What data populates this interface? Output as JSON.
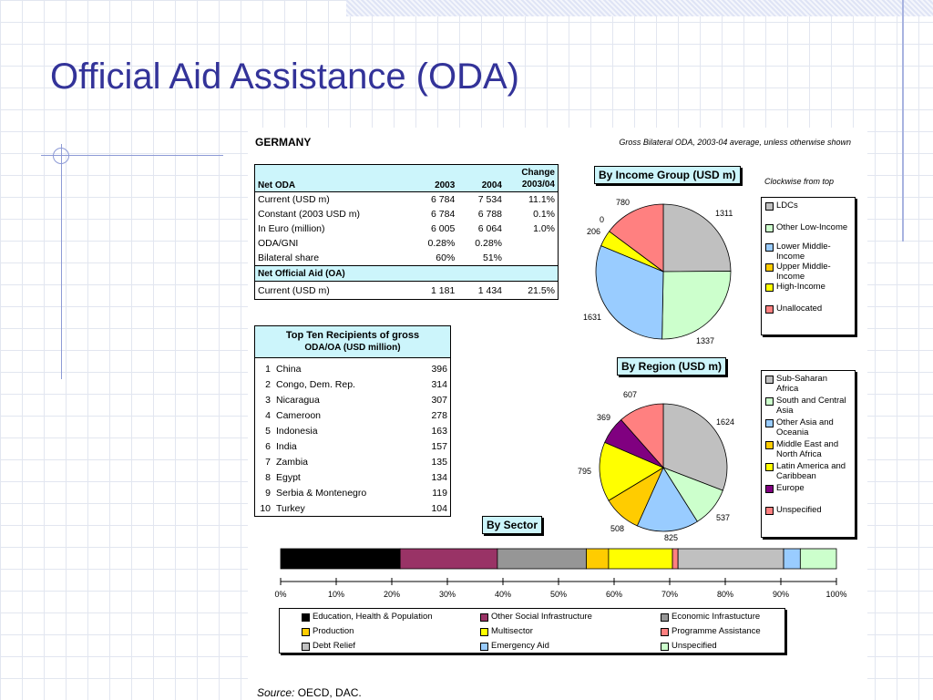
{
  "slide": {
    "title": "Official Aid Assistance (ODA)",
    "source_label": "Source:",
    "source_text": "OECD, DAC."
  },
  "figure": {
    "country": "GERMANY",
    "subtitle": "Gross Bilateral ODA, 2003-04 average, unless otherwise shown"
  },
  "colors": {
    "header_bg": "#ccf5fb",
    "title": "#333399"
  },
  "chart_data": [
    {
      "type": "table",
      "title": "",
      "columns": [
        "Net ODA",
        "2003",
        "2004",
        "Change 2003/04"
      ],
      "rows": [
        [
          "Current (USD m)",
          "6 784",
          "7 534",
          "11.1%"
        ],
        [
          "Constant (2003 USD m)",
          "6 784",
          "6 788",
          "0.1%"
        ],
        [
          "In Euro (million)",
          "6 005",
          "6 064",
          "1.0%"
        ],
        [
          "ODA/GNI",
          "0.28%",
          "0.28%",
          ""
        ],
        [
          "Bilateral share",
          "60%",
          "51%",
          ""
        ]
      ],
      "subheader": "Net Official Aid (OA)",
      "subrows": [
        [
          "Current (USD m)",
          "1 181",
          "1 434",
          "21.5%"
        ]
      ]
    },
    {
      "type": "table",
      "title": "Top Ten Recipients of gross",
      "subtitle": "ODA/OA (USD million)",
      "rows": [
        [
          "1",
          "China",
          "396"
        ],
        [
          "2",
          "Congo, Dem. Rep.",
          "314"
        ],
        [
          "3",
          "Nicaragua",
          "307"
        ],
        [
          "4",
          "Cameroon",
          "278"
        ],
        [
          "5",
          "Indonesia",
          "163"
        ],
        [
          "6",
          "India",
          "157"
        ],
        [
          "7",
          "Zambia",
          "135"
        ],
        [
          "8",
          "Egypt",
          "134"
        ],
        [
          "9",
          "Serbia & Montenegro",
          "119"
        ],
        [
          "10",
          "Turkey",
          "104"
        ]
      ]
    },
    {
      "type": "pie",
      "title": "By Income Group (USD m)",
      "note": "Clockwise from top",
      "legend_position": "right",
      "slices": [
        {
          "label": "LDCs",
          "value": 1311,
          "color": "#c0c0c0"
        },
        {
          "label": "Other Low-Income",
          "value": 1337,
          "color": "#ccffcc"
        },
        {
          "label": "Lower Middle-Income",
          "value": 1631,
          "color": "#99ccff"
        },
        {
          "label": "Upper Middle-Income",
          "value": 0,
          "color": "#ffcc00"
        },
        {
          "label": "High-Income",
          "value": 206,
          "color": "#ffff00"
        },
        {
          "label": "Unallocated",
          "value": 780,
          "color": "#ff8080"
        }
      ]
    },
    {
      "type": "pie",
      "title": "By Region (USD m)",
      "legend_position": "right",
      "slices": [
        {
          "label": "Sub-Saharan Africa",
          "value": 1624,
          "color": "#c0c0c0"
        },
        {
          "label": "South and Central Asia",
          "value": 537,
          "color": "#ccffcc"
        },
        {
          "label": "Other Asia and Oceania",
          "value": 825,
          "color": "#99ccff"
        },
        {
          "label": "Middle East and North Africa",
          "value": 508,
          "color": "#ffcc00"
        },
        {
          "label": "Latin America and Caribbean",
          "value": 795,
          "color": "#ffff00"
        },
        {
          "label": "Europe",
          "value": 369,
          "color": "#800080"
        },
        {
          "label": "Unspecified",
          "value": 607,
          "color": "#ff8080"
        }
      ]
    },
    {
      "type": "bar",
      "title": "By Sector",
      "stacked": true,
      "xlim": [
        0,
        100
      ],
      "ticks": [
        "0%",
        "10%",
        "20%",
        "30%",
        "40%",
        "50%",
        "60%",
        "70%",
        "80%",
        "90%",
        "100%"
      ],
      "legend_position": "bottom",
      "series": [
        {
          "name": "Education, Health & Population",
          "value": 21.5,
          "color": "#000000"
        },
        {
          "name": "Other Social Infrastructure",
          "value": 17.5,
          "color": "#993366"
        },
        {
          "name": "Economic Infrastucture",
          "value": 16,
          "color": "#969696"
        },
        {
          "name": "Production",
          "value": 4,
          "color": "#ffcc00"
        },
        {
          "name": "Multisector",
          "value": 11.5,
          "color": "#ffff00"
        },
        {
          "name": "Programme Assistance",
          "value": 1,
          "color": "#ff8080"
        },
        {
          "name": "Debt Relief",
          "value": 19,
          "color": "#c0c0c0"
        },
        {
          "name": "Emergency Aid",
          "value": 3,
          "color": "#99ccff"
        },
        {
          "name": "Unspecified",
          "value": 6.5,
          "color": "#ccffcc"
        }
      ]
    }
  ]
}
